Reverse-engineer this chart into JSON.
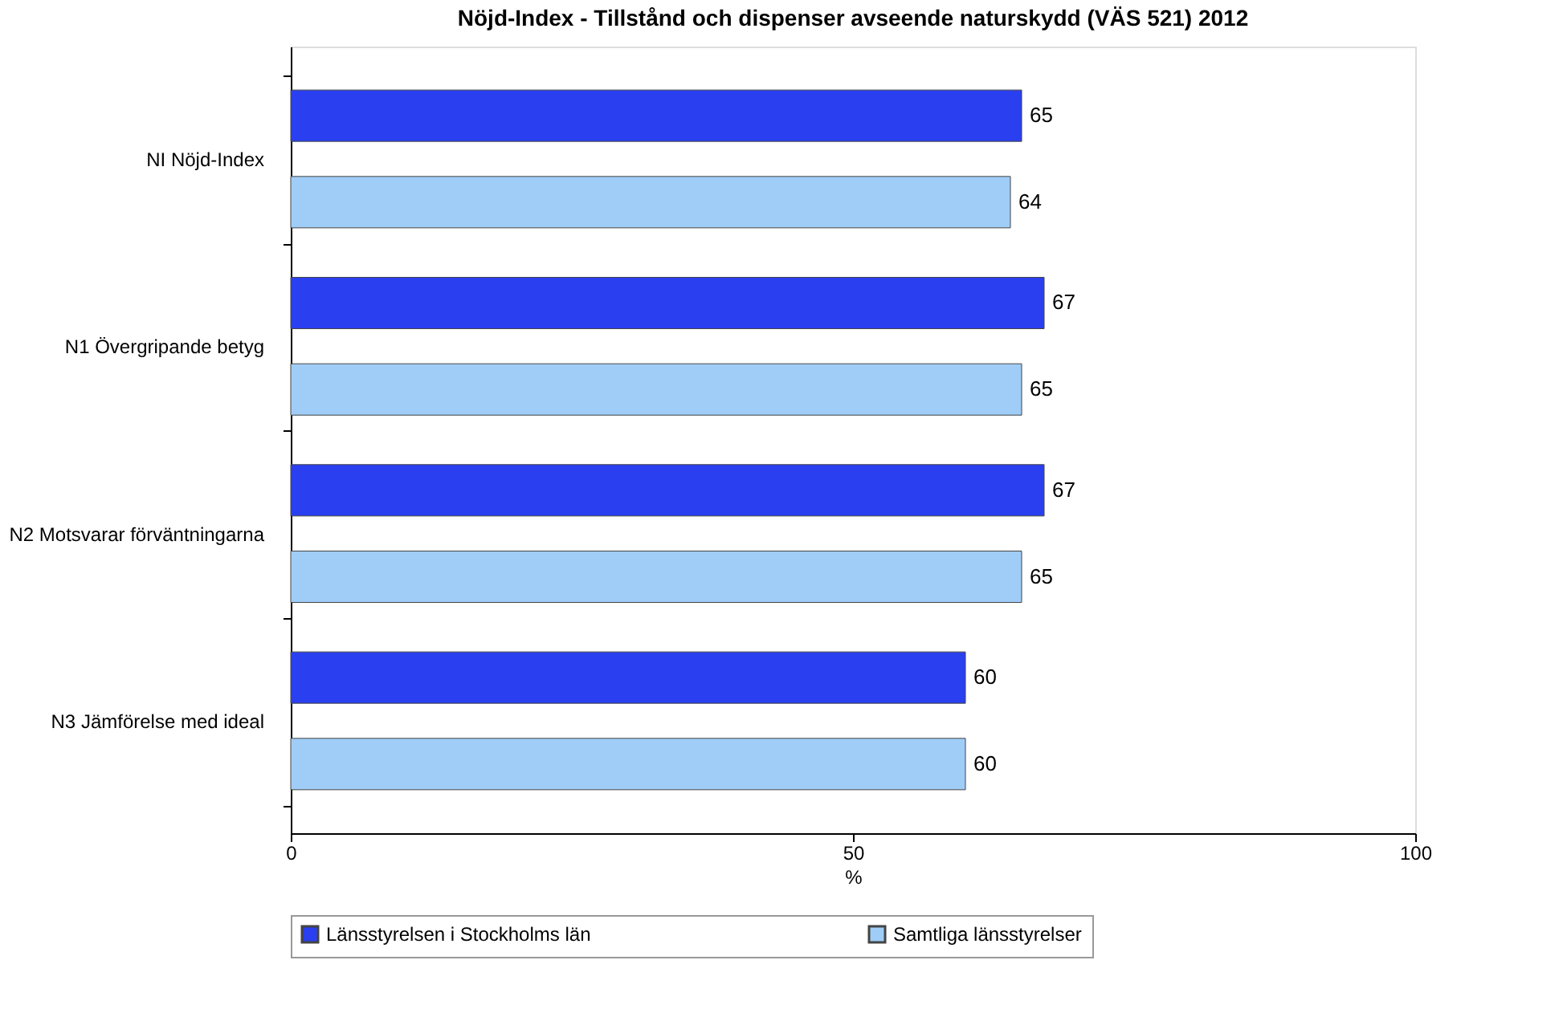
{
  "chart_data": {
    "type": "bar",
    "orientation": "horizontal",
    "title": "Nöjd-Index - Tillstånd och dispenser avseende naturskydd (VÄS 521) 2012",
    "xlabel": "%",
    "categories": [
      "NI Nöjd-Index",
      "N1 Övergripande betyg",
      "N2 Motsvarar förväntningarna",
      "N3 Jämförelse med ideal"
    ],
    "series": [
      {
        "name": "Länsstyrelsen i Stockholms län",
        "color": "#2a3ff0",
        "values": [
          65,
          67,
          67,
          60
        ]
      },
      {
        "name": "Samtliga länsstyrelser",
        "color": "#9fcdf7",
        "values": [
          64,
          65,
          65,
          60
        ]
      }
    ],
    "xlim": [
      0,
      100
    ],
    "xticks": [
      0,
      50,
      100
    ],
    "data_labels": true,
    "legend": "bottom",
    "grid": false
  }
}
